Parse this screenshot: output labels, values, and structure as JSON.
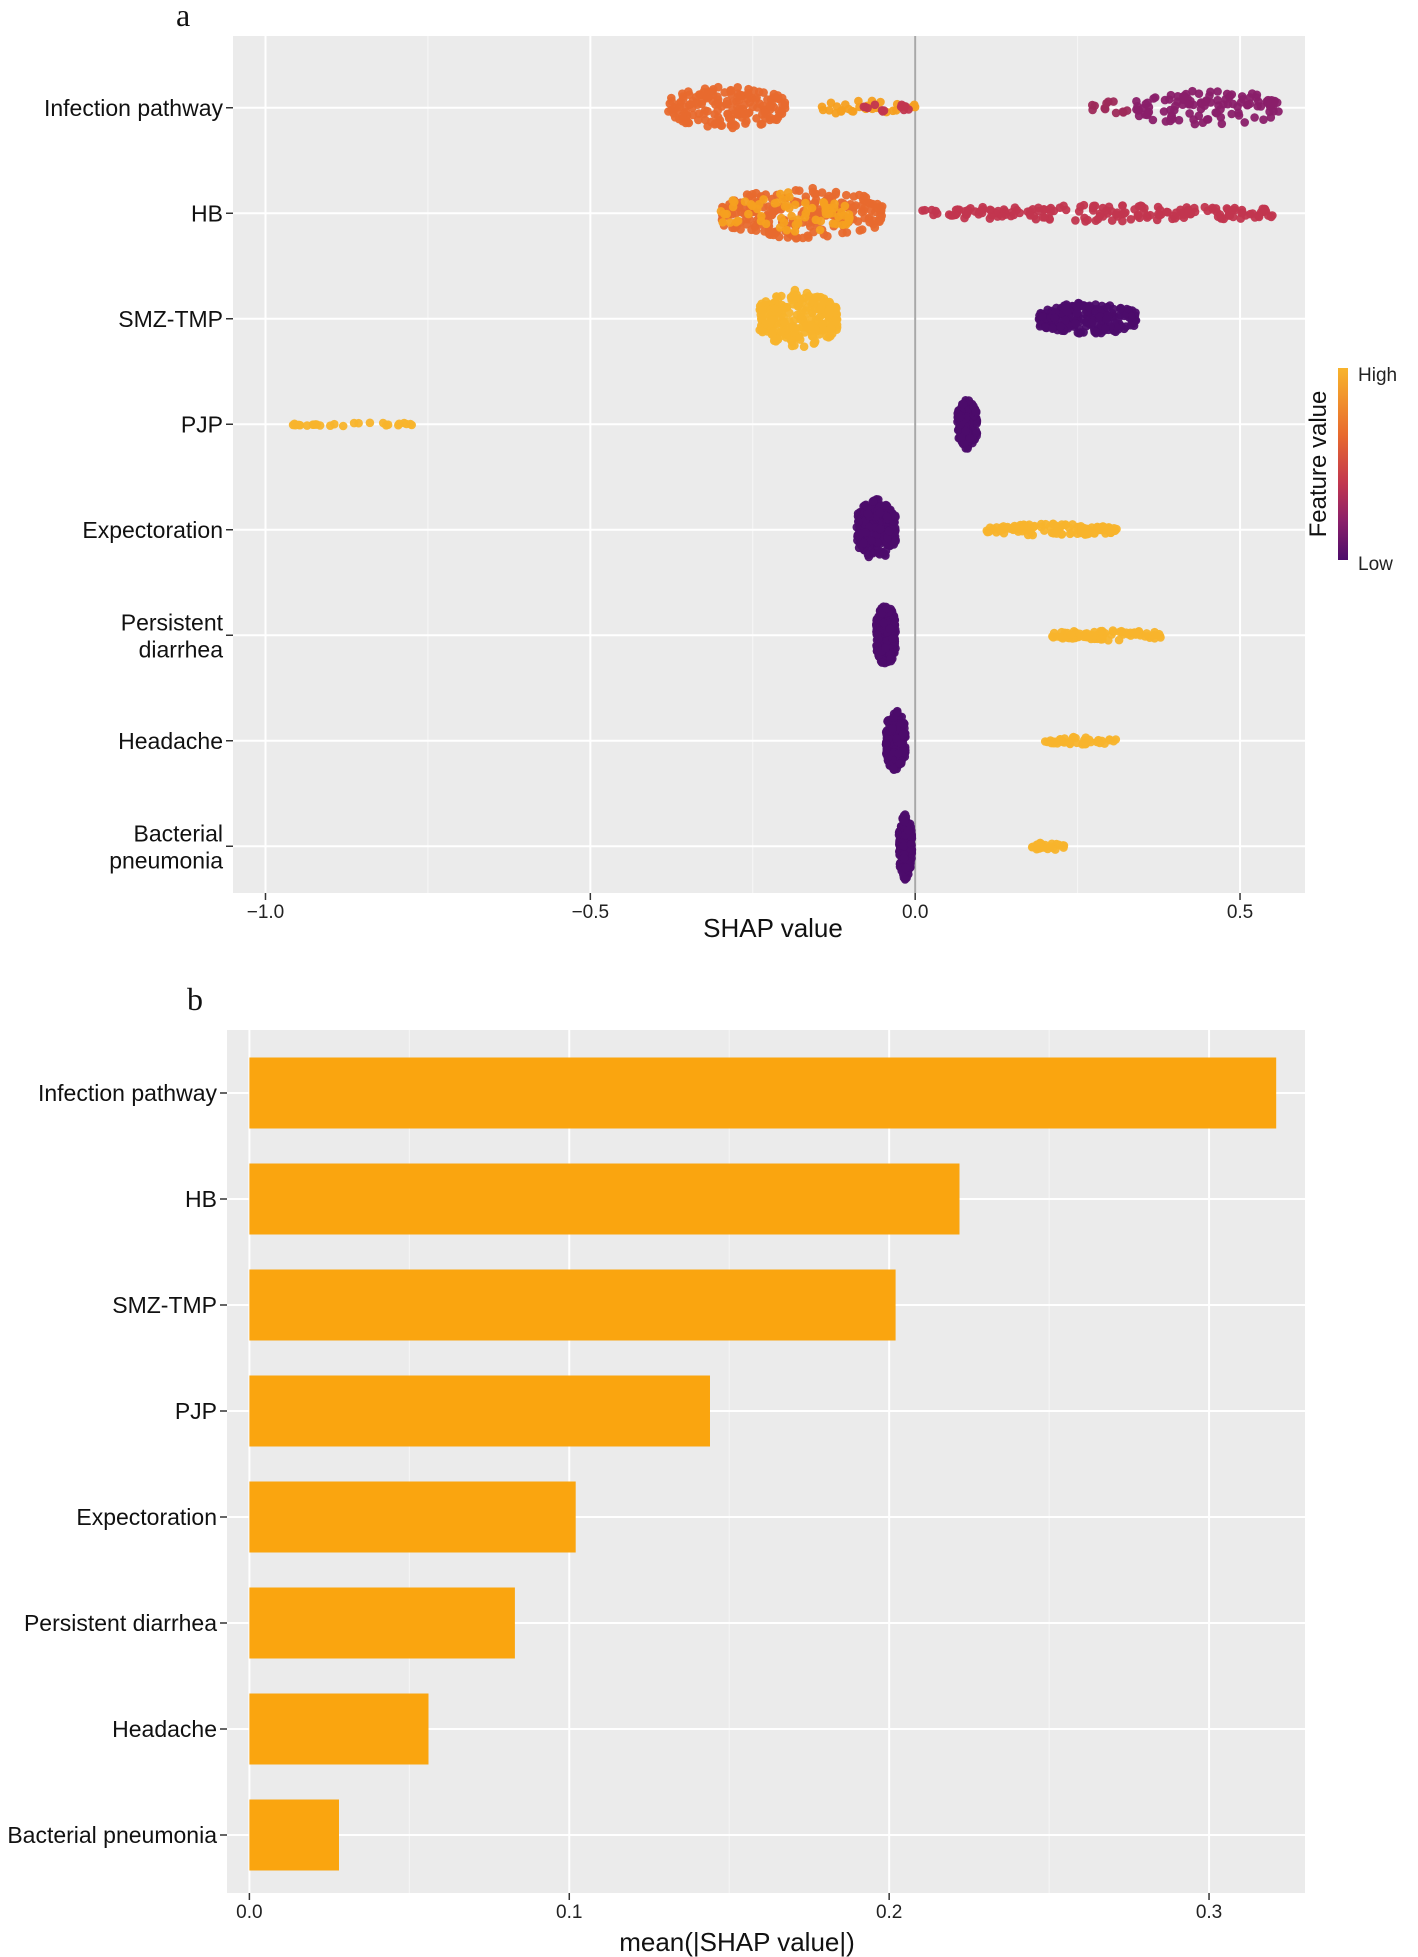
{
  "chart_data": [
    {
      "type": "scatter",
      "panel_label": "a",
      "subtype": "shap-beeswarm",
      "xlabel": "SHAP value",
      "xlim": [
        -1.05,
        0.6
      ],
      "xticks": [
        {
          "value": -1.0,
          "label": "−1.0"
        },
        {
          "value": -0.5,
          "label": "−0.5"
        },
        {
          "value": 0.0,
          "label": "0.0"
        },
        {
          "value": 0.5,
          "label": "0.5"
        }
      ],
      "legend": {
        "title": "Feature value",
        "high": "High",
        "low": "Low",
        "placement": "right",
        "colors": [
          "#f8b42c",
          "#e86a2e",
          "#c2364f",
          "#8a1f6a",
          "#4c0c6b"
        ]
      },
      "features": [
        {
          "label_lines": [
            "Infection pathway"
          ],
          "groups": [
            {
              "range": [
                -0.38,
                -0.2
              ],
              "color": "#e86a2e",
              "n": 170,
              "spread": 0.42
            },
            {
              "range": [
                -0.15,
                0.0
              ],
              "color": "#f5a020",
              "n": 30,
              "spread": 0.14
            },
            {
              "range": [
                -0.08,
                -0.01
              ],
              "color": "#c2364f",
              "n": 14,
              "spread": 0.1
            },
            {
              "range": [
                0.27,
                0.33
              ],
              "color": "#9e2a5a",
              "n": 12,
              "spread": 0.15
            },
            {
              "range": [
                0.34,
                0.56
              ],
              "color": "#8a1f6a",
              "n": 110,
              "spread": 0.36
            }
          ]
        },
        {
          "label_lines": [
            "HB"
          ],
          "groups": [
            {
              "range": [
                -0.3,
                -0.05
              ],
              "color": "#e86a2e",
              "n": 230,
              "spread": 0.5
            },
            {
              "range": [
                -0.3,
                -0.1
              ],
              "color": "#f5a020",
              "n": 70,
              "spread": 0.42
            },
            {
              "range": [
                0.01,
                0.56
              ],
              "color": "#c2364f",
              "n": 180,
              "spread": 0.16
            }
          ]
        },
        {
          "label_lines": [
            "SMZ-TMP"
          ],
          "groups": [
            {
              "range": [
                -0.24,
                -0.12
              ],
              "color": "#f8b42c",
              "n": 240,
              "spread": 0.56
            },
            {
              "range": [
                0.19,
                0.34
              ],
              "color": "#4c0c6b",
              "n": 220,
              "spread": 0.32
            }
          ]
        },
        {
          "label_lines": [
            "PJP"
          ],
          "groups": [
            {
              "range": [
                -0.96,
                -0.77
              ],
              "color": "#f8b42c",
              "n": 26,
              "spread": 0.04
            },
            {
              "range": [
                0.065,
                0.095
              ],
              "color": "#4c0c6b",
              "n": 160,
              "spread": 0.48
            }
          ]
        },
        {
          "label_lines": [
            "Expectoration"
          ],
          "groups": [
            {
              "range": [
                -0.09,
                -0.03
              ],
              "color": "#4c0c6b",
              "n": 220,
              "spread": 0.6
            },
            {
              "range": [
                0.11,
                0.31
              ],
              "color": "#f8b42c",
              "n": 120,
              "spread": 0.12
            }
          ]
        },
        {
          "label_lines": [
            "Persistent",
            "diarrhea"
          ],
          "groups": [
            {
              "range": [
                -0.06,
                -0.03
              ],
              "color": "#4c0c6b",
              "n": 200,
              "spread": 0.62
            },
            {
              "range": [
                0.21,
                0.38
              ],
              "color": "#f8b42c",
              "n": 80,
              "spread": 0.1
            }
          ]
        },
        {
          "label_lines": [
            "Headache"
          ],
          "groups": [
            {
              "range": [
                -0.045,
                -0.015
              ],
              "color": "#4c0c6b",
              "n": 180,
              "spread": 0.62
            },
            {
              "range": [
                0.2,
                0.31
              ],
              "color": "#f8b42c",
              "n": 40,
              "spread": 0.08
            }
          ]
        },
        {
          "label_lines": [
            "Bacterial",
            "pneumonia"
          ],
          "groups": [
            {
              "range": [
                -0.025,
                -0.005
              ],
              "color": "#4c0c6b",
              "n": 180,
              "spread": 0.66
            },
            {
              "range": [
                0.18,
                0.23
              ],
              "color": "#f8b42c",
              "n": 30,
              "spread": 0.08
            }
          ]
        }
      ]
    },
    {
      "type": "bar",
      "panel_label": "b",
      "orientation": "horizontal",
      "color": "#faa50f",
      "xlabel": "mean(|SHAP value|)",
      "xlim": [
        -0.007,
        0.33
      ],
      "xticks": [
        {
          "value": 0.0,
          "label": "0.0"
        },
        {
          "value": 0.1,
          "label": "0.1"
        },
        {
          "value": 0.2,
          "label": "0.2"
        },
        {
          "value": 0.3,
          "label": "0.3"
        }
      ],
      "categories": [
        "Infection pathway",
        "HB",
        "SMZ-TMP",
        "PJP",
        "Expectoration",
        "Persistent diarrhea",
        "Headache",
        "Bacterial pneumonia"
      ],
      "values": [
        0.321,
        0.222,
        0.202,
        0.144,
        0.102,
        0.083,
        0.056,
        0.028
      ]
    }
  ]
}
